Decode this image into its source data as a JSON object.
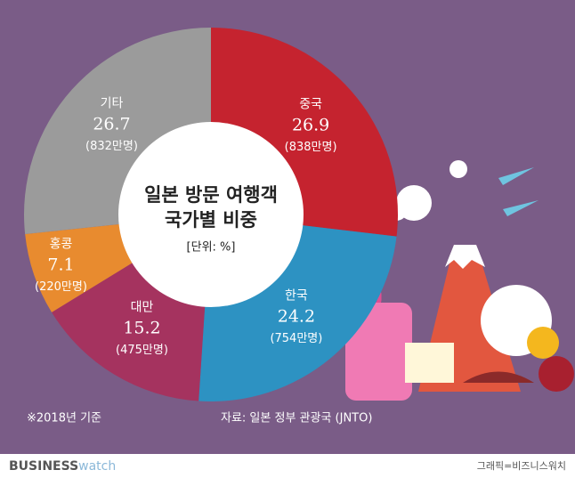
{
  "chart_data": {
    "type": "donut",
    "title_lines": [
      "일본 방문 여행객",
      "국가별 비중"
    ],
    "subtitle": "[단위: %]",
    "categories": [
      "중국",
      "한국",
      "대만",
      "홍콩",
      "기타"
    ],
    "values": [
      26.9,
      24.2,
      15.2,
      7.1,
      26.7
    ],
    "sub_labels": [
      "(838만명)",
      "(754만명)",
      "(475만명)",
      "(220만명)",
      "(832만명)"
    ],
    "colors": [
      "#c5232f",
      "#2d92c2",
      "#a5335f",
      "#e88b2f",
      "#9b9b9b"
    ],
    "note": "※2018년 기준",
    "source": "자료: 일본 정부 관광국 (JNTO)",
    "brand": [
      "BUSINESS",
      "watch"
    ],
    "credit": "그래픽=비즈니스워치"
  }
}
